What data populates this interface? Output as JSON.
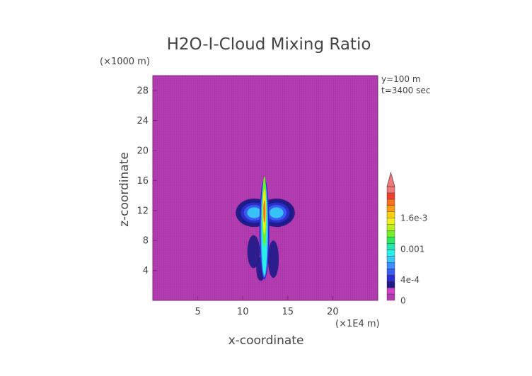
{
  "chart_data": {
    "type": "heatmap",
    "title": "H2O-I-Cloud Mixing Ratio",
    "xlabel": "x-coordinate",
    "ylabel": "z-coordinate",
    "x_units": "(×1E4 m)",
    "y_units": "(×1000 m)",
    "annotations": [
      "y=100 m",
      "t=3400 sec"
    ],
    "xlim": [
      0,
      25
    ],
    "ylim": [
      0,
      30
    ],
    "x_ticks": [
      5,
      10,
      15,
      20
    ],
    "y_ticks": [
      4,
      8,
      12,
      16,
      20,
      24,
      28
    ],
    "colorbar": {
      "tick_labels": [
        "0",
        "4e-4",
        "0.001",
        "1.6e-3"
      ],
      "tick_values": [
        0,
        0.0004,
        0.001,
        0.0016
      ],
      "range": [
        0,
        0.0022
      ],
      "extend": "max",
      "colors": [
        "#b23cb0",
        "#d040c8",
        "#1e1a88",
        "#2a2ed0",
        "#3b5cf0",
        "#3e8cff",
        "#36c8f8",
        "#28f0e8",
        "#20e8b0",
        "#2ee860",
        "#6ef028",
        "#b8f020",
        "#f0f018",
        "#f8d010",
        "#f8a010",
        "#f87020",
        "#f04030",
        "#f07878"
      ]
    },
    "background_value": 0,
    "features": [
      {
        "kind": "core",
        "x": 12.4,
        "z_bottom": 2.8,
        "z_top": 16.2,
        "value_max": 0.0019
      },
      {
        "kind": "anvil",
        "x_range": [
          9.2,
          15.8
        ],
        "z_range": [
          9.8,
          13.6
        ],
        "value_range": [
          0.0002,
          0.0008
        ]
      }
    ]
  }
}
